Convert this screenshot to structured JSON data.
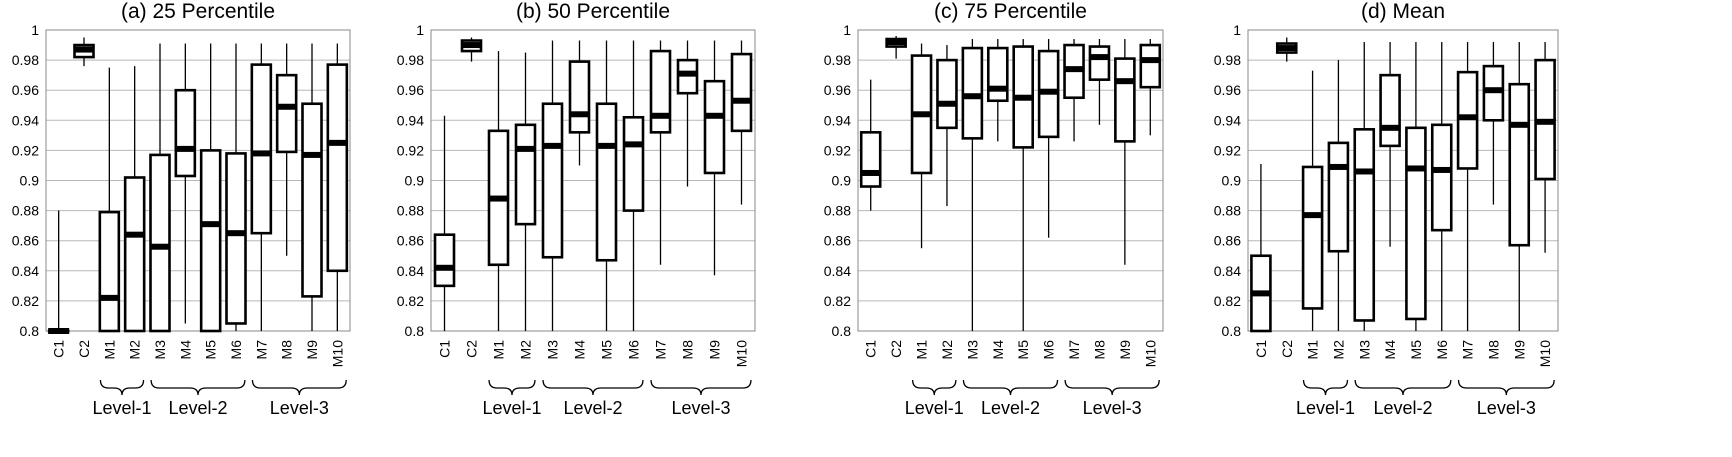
{
  "chart_data": [
    {
      "type": "box",
      "title": "(a) 25 Percentile",
      "categories": [
        "C1",
        "C2",
        "M1",
        "M2",
        "M3",
        "M4",
        "M5",
        "M6",
        "M7",
        "M8",
        "M9",
        "M10"
      ],
      "ylim": [
        0.8,
        1.0
      ],
      "yticks": [
        "0.8",
        "0.82",
        "0.84",
        "0.86",
        "0.88",
        "0.9",
        "0.92",
        "0.94",
        "0.96",
        "0.98",
        "1"
      ],
      "groups": [
        {
          "label": "Level-1",
          "from": 2,
          "to": 3
        },
        {
          "label": "Level-2",
          "from": 4,
          "to": 7
        },
        {
          "label": "Level-3",
          "from": 8,
          "to": 11
        }
      ],
      "boxes": [
        {
          "min": 0.8,
          "q1": 0.8,
          "median": 0.8,
          "q3": 0.8,
          "max": 0.88
        },
        {
          "min": 0.976,
          "q1": 0.982,
          "median": 0.987,
          "q3": 0.99,
          "max": 0.995
        },
        {
          "min": 0.8,
          "q1": 0.8,
          "median": 0.822,
          "q3": 0.879,
          "max": 0.975
        },
        {
          "min": 0.8,
          "q1": 0.8,
          "median": 0.864,
          "q3": 0.902,
          "max": 0.976
        },
        {
          "min": 0.8,
          "q1": 0.8,
          "median": 0.856,
          "q3": 0.917,
          "max": 0.991
        },
        {
          "min": 0.805,
          "q1": 0.903,
          "median": 0.921,
          "q3": 0.96,
          "max": 0.991
        },
        {
          "min": 0.8,
          "q1": 0.8,
          "median": 0.871,
          "q3": 0.92,
          "max": 0.991
        },
        {
          "min": 0.8,
          "q1": 0.805,
          "median": 0.865,
          "q3": 0.918,
          "max": 0.991
        },
        {
          "min": 0.8,
          "q1": 0.865,
          "median": 0.918,
          "q3": 0.977,
          "max": 0.991
        },
        {
          "min": 0.85,
          "q1": 0.919,
          "median": 0.949,
          "q3": 0.97,
          "max": 0.991
        },
        {
          "min": 0.8,
          "q1": 0.823,
          "median": 0.917,
          "q3": 0.951,
          "max": 0.991
        },
        {
          "min": 0.8,
          "q1": 0.84,
          "median": 0.925,
          "q3": 0.977,
          "max": 0.991
        }
      ]
    },
    {
      "type": "box",
      "title": "(b) 50 Percentile",
      "categories": [
        "C1",
        "C2",
        "M1",
        "M2",
        "M3",
        "M4",
        "M5",
        "M6",
        "M7",
        "M8",
        "M9",
        "M10"
      ],
      "ylim": [
        0.8,
        1.0
      ],
      "yticks": [
        "0.8",
        "0.82",
        "0.84",
        "0.86",
        "0.88",
        "0.9",
        "0.92",
        "0.94",
        "0.96",
        "0.98",
        "1"
      ],
      "groups": [
        {
          "label": "Level-1",
          "from": 2,
          "to": 3
        },
        {
          "label": "Level-2",
          "from": 4,
          "to": 7
        },
        {
          "label": "Level-3",
          "from": 8,
          "to": 11
        }
      ],
      "boxes": [
        {
          "min": 0.8,
          "q1": 0.83,
          "median": 0.842,
          "q3": 0.864,
          "max": 0.943
        },
        {
          "min": 0.979,
          "q1": 0.986,
          "median": 0.99,
          "q3": 0.993,
          "max": 0.995
        },
        {
          "min": 0.8,
          "q1": 0.844,
          "median": 0.888,
          "q3": 0.933,
          "max": 0.986
        },
        {
          "min": 0.8,
          "q1": 0.871,
          "median": 0.921,
          "q3": 0.937,
          "max": 0.985
        },
        {
          "min": 0.8,
          "q1": 0.849,
          "median": 0.923,
          "q3": 0.951,
          "max": 0.993
        },
        {
          "min": 0.91,
          "q1": 0.932,
          "median": 0.944,
          "q3": 0.979,
          "max": 0.993
        },
        {
          "min": 0.8,
          "q1": 0.847,
          "median": 0.923,
          "q3": 0.951,
          "max": 0.993
        },
        {
          "min": 0.8,
          "q1": 0.88,
          "median": 0.924,
          "q3": 0.942,
          "max": 0.993
        },
        {
          "min": 0.844,
          "q1": 0.932,
          "median": 0.943,
          "q3": 0.986,
          "max": 0.993
        },
        {
          "min": 0.896,
          "q1": 0.958,
          "median": 0.971,
          "q3": 0.98,
          "max": 0.993
        },
        {
          "min": 0.837,
          "q1": 0.905,
          "median": 0.943,
          "q3": 0.966,
          "max": 0.993
        },
        {
          "min": 0.884,
          "q1": 0.933,
          "median": 0.953,
          "q3": 0.984,
          "max": 0.993
        }
      ]
    },
    {
      "type": "box",
      "title": "(c) 75 Percentile",
      "categories": [
        "C1",
        "C2",
        "M1",
        "M2",
        "M3",
        "M4",
        "M5",
        "M6",
        "M7",
        "M8",
        "M9",
        "M10"
      ],
      "ylim": [
        0.8,
        1.0
      ],
      "yticks": [
        "0.8",
        "0.82",
        "0.84",
        "0.86",
        "0.88",
        "0.9",
        "0.92",
        "0.94",
        "0.96",
        "0.98",
        "1"
      ],
      "groups": [
        {
          "label": "Level-1",
          "from": 2,
          "to": 3
        },
        {
          "label": "Level-2",
          "from": 4,
          "to": 7
        },
        {
          "label": "Level-3",
          "from": 8,
          "to": 11
        }
      ],
      "boxes": [
        {
          "min": 0.88,
          "q1": 0.896,
          "median": 0.905,
          "q3": 0.932,
          "max": 0.967
        },
        {
          "min": 0.981,
          "q1": 0.989,
          "median": 0.992,
          "q3": 0.994,
          "max": 0.996
        },
        {
          "min": 0.855,
          "q1": 0.905,
          "median": 0.944,
          "q3": 0.983,
          "max": 0.991
        },
        {
          "min": 0.883,
          "q1": 0.935,
          "median": 0.951,
          "q3": 0.98,
          "max": 0.99
        },
        {
          "min": 0.8,
          "q1": 0.928,
          "median": 0.956,
          "q3": 0.988,
          "max": 0.994
        },
        {
          "min": 0.926,
          "q1": 0.953,
          "median": 0.961,
          "q3": 0.988,
          "max": 0.994
        },
        {
          "min": 0.8,
          "q1": 0.922,
          "median": 0.955,
          "q3": 0.989,
          "max": 0.994
        },
        {
          "min": 0.862,
          "q1": 0.929,
          "median": 0.959,
          "q3": 0.986,
          "max": 0.994
        },
        {
          "min": 0.926,
          "q1": 0.955,
          "median": 0.974,
          "q3": 0.99,
          "max": 0.994
        },
        {
          "min": 0.937,
          "q1": 0.967,
          "median": 0.982,
          "q3": 0.989,
          "max": 0.994
        },
        {
          "min": 0.844,
          "q1": 0.926,
          "median": 0.966,
          "q3": 0.981,
          "max": 0.994
        },
        {
          "min": 0.93,
          "q1": 0.962,
          "median": 0.98,
          "q3": 0.99,
          "max": 0.994
        }
      ]
    },
    {
      "type": "box",
      "title": "(d) Mean",
      "categories": [
        "C1",
        "C2",
        "M1",
        "M2",
        "M3",
        "M4",
        "M5",
        "M6",
        "M7",
        "M8",
        "M9",
        "M10"
      ],
      "ylim": [
        0.8,
        1.0
      ],
      "yticks": [
        "0.8",
        "0.82",
        "0.84",
        "0.86",
        "0.88",
        "0.9",
        "0.92",
        "0.94",
        "0.96",
        "0.98",
        "1"
      ],
      "groups": [
        {
          "label": "Level-1",
          "from": 2,
          "to": 3
        },
        {
          "label": "Level-2",
          "from": 4,
          "to": 7
        },
        {
          "label": "Level-3",
          "from": 8,
          "to": 11
        }
      ],
      "boxes": [
        {
          "min": 0.8,
          "q1": 0.8,
          "median": 0.825,
          "q3": 0.85,
          "max": 0.911
        },
        {
          "min": 0.979,
          "q1": 0.985,
          "median": 0.988,
          "q3": 0.991,
          "max": 0.995
        },
        {
          "min": 0.8,
          "q1": 0.815,
          "median": 0.877,
          "q3": 0.909,
          "max": 0.973
        },
        {
          "min": 0.8,
          "q1": 0.853,
          "median": 0.909,
          "q3": 0.925,
          "max": 0.98
        },
        {
          "min": 0.8,
          "q1": 0.807,
          "median": 0.906,
          "q3": 0.934,
          "max": 0.992
        },
        {
          "min": 0.856,
          "q1": 0.923,
          "median": 0.935,
          "q3": 0.97,
          "max": 0.992
        },
        {
          "min": 0.8,
          "q1": 0.808,
          "median": 0.908,
          "q3": 0.935,
          "max": 0.992
        },
        {
          "min": 0.8,
          "q1": 0.867,
          "median": 0.907,
          "q3": 0.937,
          "max": 0.992
        },
        {
          "min": 0.8,
          "q1": 0.908,
          "median": 0.942,
          "q3": 0.972,
          "max": 0.992
        },
        {
          "min": 0.884,
          "q1": 0.94,
          "median": 0.96,
          "q3": 0.976,
          "max": 0.992
        },
        {
          "min": 0.8,
          "q1": 0.857,
          "median": 0.937,
          "q3": 0.964,
          "max": 0.992
        },
        {
          "min": 0.852,
          "q1": 0.901,
          "median": 0.939,
          "q3": 0.98,
          "max": 0.992
        }
      ]
    }
  ]
}
